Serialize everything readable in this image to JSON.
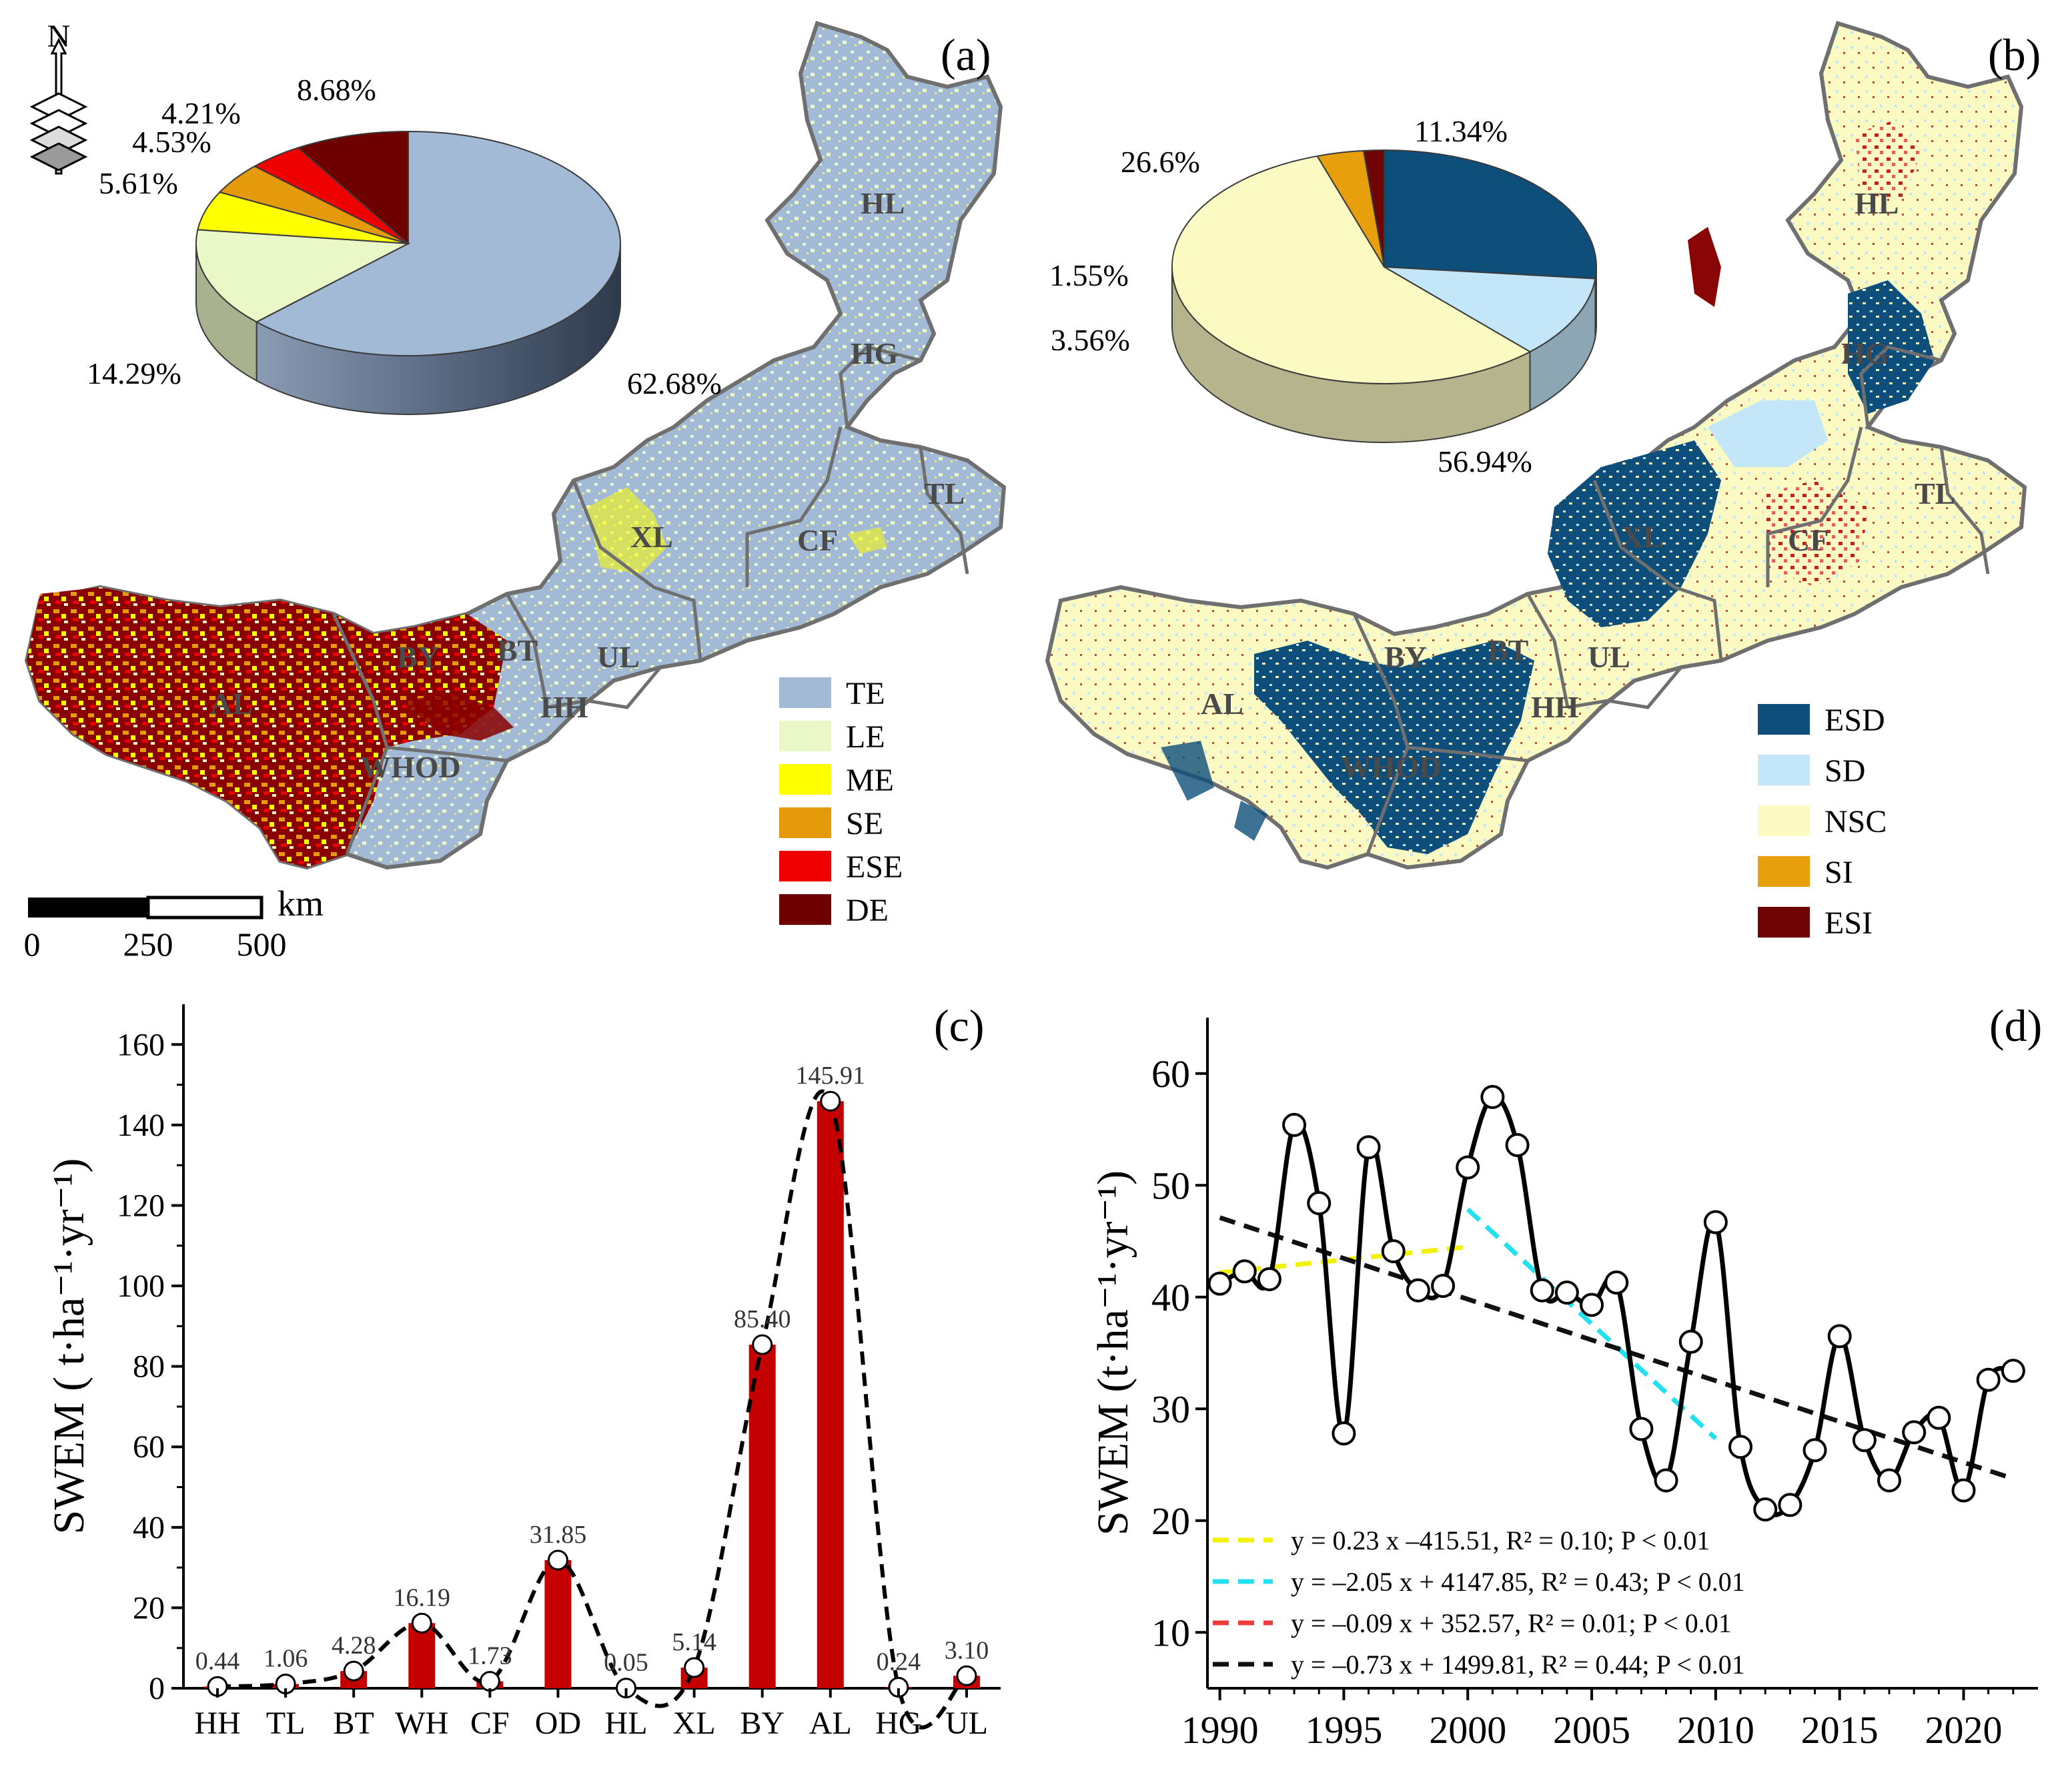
{
  "panels": [
    {
      "label": "(a)"
    },
    {
      "label": "(b)"
    },
    {
      "label": "(c)"
    },
    {
      "label": "(d)"
    }
  ],
  "map_common": {
    "north_label": "N",
    "scale_unit": "km",
    "scale_ticks": [
      "0",
      "250",
      "500"
    ],
    "region_labels": [
      "HL",
      "HG",
      "TL",
      "CF",
      "XL",
      "UL",
      "BT",
      "HH",
      "BY",
      "AL",
      "WHOD"
    ]
  },
  "chart_data": [
    {
      "type": "pie",
      "panel": "(a)",
      "slices": [
        {
          "name": "TE",
          "value": 62.68,
          "label": "62.68%",
          "color": "#a3bad6"
        },
        {
          "name": "LE",
          "value": 14.29,
          "label": "14.29%",
          "color": "#eaf7c6"
        },
        {
          "name": "ME",
          "value": 5.61,
          "label": "5.61%",
          "color": "#ffff00"
        },
        {
          "name": "SE",
          "value": 4.53,
          "label": "4.53%",
          "color": "#e59a0c"
        },
        {
          "name": "ESE",
          "value": 4.21,
          "label": "4.21%",
          "color": "#ee0000"
        },
        {
          "name": "DE",
          "value": 8.68,
          "label": "8.68%",
          "color": "#6e0000"
        }
      ],
      "legend": [
        "TE",
        "LE",
        "ME",
        "SE",
        "ESE",
        "DE"
      ]
    },
    {
      "type": "pie",
      "panel": "(b)",
      "slices": [
        {
          "name": "ESD",
          "value": 26.6,
          "label": "26.6%",
          "color": "#0d4f7a"
        },
        {
          "name": "SD",
          "value": 11.34,
          "label": "11.34%",
          "color": "#c3e6f8"
        },
        {
          "name": "NSC",
          "value": 56.94,
          "label": "56.94%",
          "color": "#fbfac3"
        },
        {
          "name": "SI",
          "value": 3.56,
          "label": "3.56%",
          "color": "#e89f0c"
        },
        {
          "name": "ESI",
          "value": 1.55,
          "label": "1.55%",
          "color": "#700404"
        }
      ],
      "legend": [
        "ESD",
        "SD",
        "NSC",
        "SI",
        "ESI"
      ]
    },
    {
      "type": "bar",
      "panel": "(c)",
      "categories": [
        "HH",
        "TL",
        "BT",
        "WH",
        "CF",
        "OD",
        "HL",
        "XL",
        "BY",
        "AL",
        "HG",
        "UL"
      ],
      "values": [
        0.44,
        1.06,
        4.28,
        16.19,
        1.73,
        31.85,
        0.05,
        5.14,
        85.4,
        145.91,
        0.24,
        3.1
      ],
      "data_labels": [
        "0.44",
        "1.06",
        "4.28",
        "16.19",
        "1.73",
        "31.85",
        "0.05",
        "5.14",
        "85.40",
        "145.91",
        "0.24",
        "3.10"
      ],
      "ylabel": "SWEM ( t·ha⁻¹·yr⁻¹)",
      "ylim": [
        0,
        170
      ],
      "yticks": [
        0,
        20,
        40,
        60,
        80,
        100,
        120,
        140,
        160
      ],
      "bar_color": "#c40000"
    },
    {
      "type": "line",
      "panel": "(d)",
      "x": [
        1990,
        1991,
        1992,
        1993,
        1994,
        1995,
        1996,
        1997,
        1998,
        1999,
        2000,
        2001,
        2002,
        2003,
        2004,
        2005,
        2006,
        2007,
        2008,
        2009,
        2010,
        2011,
        2012,
        2013,
        2014,
        2015,
        2016,
        2017,
        2018,
        2019,
        2020,
        2021,
        2022
      ],
      "series": [
        {
          "values": [
            41.2,
            42.3,
            41.6,
            55.4,
            48.4,
            27.8,
            53.4,
            44.1,
            40.6,
            41.0,
            51.6,
            57.9,
            53.6,
            40.6,
            40.4,
            39.3,
            41.3,
            28.2,
            23.6,
            36.0,
            46.7,
            26.6,
            21.0,
            21.4,
            26.3,
            36.5,
            27.2,
            23.6,
            27.9,
            29.2,
            22.7,
            32.6,
            33.4
          ]
        }
      ],
      "trends": [
        {
          "label": "y = 0.23 x –415.51, R² = 0.10; P < 0.01",
          "x_range": [
            1990,
            2000
          ],
          "slope": 0.23,
          "intercept": -415.51,
          "color": "#f2f200"
        },
        {
          "label": "y = –2.05 x + 4147.85, R² = 0.43; P < 0.01",
          "x_range": [
            2000,
            2010
          ],
          "slope": -2.05,
          "intercept": 4147.85,
          "color": "#22e0f0"
        },
        {
          "label": "y = –0.09 x + 352.57, R² = 0.01; P < 0.01",
          "x_range": [
            2010,
            2022
          ],
          "slope": -0.09,
          "intercept": 352.57,
          "color": "#ee3a3a"
        },
        {
          "label": "y = –0.73 x + 1499.81, R² = 0.44; P < 0.01",
          "x_range": [
            1990,
            2022
          ],
          "slope": -0.73,
          "intercept": 1499.81,
          "color": "#111111"
        }
      ],
      "ylabel": "SWEM (t·ha⁻¹·yr⁻¹)",
      "xlim": [
        1989.5,
        2023
      ],
      "ylim": [
        5,
        65
      ],
      "xticks": [
        1990,
        1995,
        2000,
        2005,
        2010,
        2015,
        2020
      ],
      "yticks": [
        10,
        20,
        30,
        40,
        50,
        60
      ]
    }
  ]
}
